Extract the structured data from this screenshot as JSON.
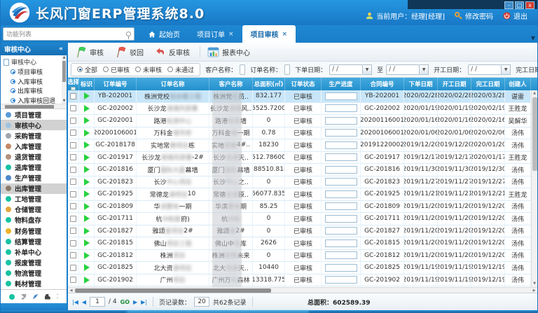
{
  "window": {
    "title": "长风门窗ERP管理系统8.0",
    "current_user": "当前用户：经理[经理]",
    "change_password": "修改密码",
    "logout": "退出",
    "minimize": "-",
    "maximize": "□",
    "close": "x"
  },
  "nav": {
    "function_list": "功能列表",
    "close_glyph": "×",
    "overflow_glyph": "▼",
    "tabs": [
      {
        "label": "起始页",
        "home": true
      },
      {
        "label": "项目订单",
        "closable": true
      },
      {
        "label": "项目审核",
        "closable": true,
        "active": true
      }
    ]
  },
  "sidebar": {
    "panel_title": "审核中心",
    "collapse_glyph": "«",
    "tree_root": "审核中心",
    "tree_items": [
      {
        "label": "项目审核"
      },
      {
        "label": "入库审核"
      },
      {
        "label": "出库审核"
      },
      {
        "label": "入库审核回退"
      }
    ],
    "up_glyph": "▲",
    "down_glyph": "▼",
    "menu": [
      {
        "label": "项目管理",
        "color": "#5b9bd5"
      },
      {
        "label": "审核中心",
        "color": "#9fc3e0",
        "selected": true
      },
      {
        "label": "采购管理",
        "color": "#a0a6ad"
      },
      {
        "label": "入库管理",
        "color": "#c48a66"
      },
      {
        "label": "退货管理",
        "color": "#b3917c"
      },
      {
        "label": "退库管理",
        "color": "#17c3a2"
      },
      {
        "label": "生产管理",
        "color": "#4f88c9"
      },
      {
        "label": "出库管理",
        "color": "#8a7a68",
        "selected": true
      },
      {
        "label": "工地管理",
        "color": "#17c3a2"
      },
      {
        "label": "仓储管理",
        "color": "#e2a63c"
      },
      {
        "label": "物料盘存",
        "color": "#17c3a2"
      },
      {
        "label": "财务管理",
        "color": "#f0b429"
      },
      {
        "label": "结算管理",
        "color": "#17c3a2"
      },
      {
        "label": "补单中心",
        "color": "#17c3a2"
      },
      {
        "label": "报废管理",
        "color": "#17c3a2"
      },
      {
        "label": "物流管理",
        "color": "#17c3a2"
      },
      {
        "label": "耗材管理",
        "color": "#17c3a2"
      }
    ]
  },
  "toolbar": {
    "audit": "审核",
    "reject": "驳回",
    "unaudit": "反审核",
    "report_center": "报表中心"
  },
  "filters": {
    "radios": [
      {
        "label": "全部",
        "checked": true
      },
      {
        "label": "已审核"
      },
      {
        "label": "未审核"
      },
      {
        "label": "未通过"
      }
    ],
    "customer_label": "客户名称：",
    "order_name_label": "订单名称：",
    "order_date_label": "下单日期：",
    "to_label": "至",
    "start_date_label": "开工日期：",
    "finish_date_label": "完工日期：",
    "date_value": "/  /",
    "dropdown_glyph": "▼"
  },
  "table": {
    "headers": {
      "select": "选择",
      "flag": "标识",
      "order_no": "订单编号",
      "order_name": "订单名称",
      "customer": "客户名称",
      "area": "总面积(㎡)",
      "status": "订单状态",
      "progress": "生产进度",
      "contract": "合同编号",
      "order_date": "下单日期",
      "start_date": "开工日期",
      "finish_date": "完工日期",
      "creator": "创建人"
    },
    "rows": [
      {
        "sel": true,
        "no": "YB-202001",
        "name_pre": "株洲党校",
        "name_blur": "综合楼工程",
        "name_suf": "",
        "cust_pre": "株洲党",
        "cust_blur": "校",
        "cust_suf": "员..",
        "area": "832.177",
        "status": "已审核",
        "progress": 0,
        "contract": "YB-202001",
        "d1": "2020/02/28",
        "d2": "2020/02/28",
        "d3": "2020/03/28",
        "creator": "谌雷"
      },
      {
        "no": "GC-202002",
        "name_pre": "长沙龙",
        "name_blur": "湖湘风原著",
        "name_suf": "",
        "cust_pre": "长沙龙",
        "cust_blur": "湖湘",
        "cust_suf": "风..",
        "area": "65525.7200..",
        "status": "已审核",
        "progress": 18,
        "contract": "GC-202002",
        "d1": "2020/01/19",
        "d2": "2020/01/19",
        "d3": "2020/02/19",
        "creator": "王胜龙"
      },
      {
        "no": "GC-202001",
        "name_pre": "路港",
        "name_blur": "检测中心",
        "name_suf": "",
        "cust_pre": "路港",
        "cust_blur": "检测",
        "cust_suf": "墙",
        "area": "0",
        "status": "已审核",
        "progress": 45,
        "contract": "20200116001",
        "d1": "2020/01/16",
        "d2": "2020/01/16",
        "d3": "2020/02/16",
        "creator": "吴解华"
      },
      {
        "no": "20200106001",
        "name_pre": "万科金",
        "name_blur": "域华府",
        "name_suf": "",
        "cust_pre": "万科金",
        "cust_blur": "域",
        "cust_suf": "一期",
        "area": "0.78",
        "status": "已审核",
        "progress": 70,
        "contract": "20200106001",
        "d1": "2020/01/06",
        "d2": "2020/01/06",
        "d3": "2020/02/06",
        "creator": "汤伟"
      },
      {
        "no": "GC-2018178",
        "name_pre": "实地常",
        "name_blur": "德项目",
        "name_suf": "栋",
        "cust_pre": "实地",
        "cust_blur": "常德",
        "cust_suf": "4#..",
        "area": "18230",
        "status": "已审核",
        "progress": 100,
        "contract": "20191220002",
        "d1": "2019/12/20",
        "d2": "2019/12/20",
        "d3": "2020/01/20",
        "creator": "汤伟"
      },
      {
        "no": "GC-201917",
        "name_pre": "长沙龙",
        "name_blur": "湖湘风原著",
        "name_suf": "-2#",
        "cust_pre": "长沙",
        "cust_blur": "龙湖",
        "cust_suf": "天..",
        "area": "8512.78600..",
        "status": "已审核",
        "progress": 70,
        "contract": "GC-201917",
        "d1": "2019/12/17",
        "d2": "2019/12/17",
        "d3": "2020/01/17",
        "creator": "王胜龙"
      },
      {
        "no": "GC-201816",
        "name_pre": "厦门",
        "name_blur": "国际大厦",
        "name_suf": "幕墙",
        "cust_pre": "厦门",
        "cust_blur": "国际",
        "cust_suf": "幕墙",
        "area": "188510.818",
        "status": "已审核",
        "progress": 0,
        "contract": "GC-201816",
        "d1": "2019/11/30",
        "d2": "2019/11/30",
        "d3": "2019/12/30",
        "creator": "汤伟"
      },
      {
        "no": "GC-201823",
        "name_pre": "长沙",
        "name_blur": "中心项目",
        "name_suf": "",
        "cust_pre": "长沙",
        "cust_blur": "中心",
        "cust_suf": "之..",
        "area": "0",
        "status": "已审核",
        "progress": 0,
        "contract": "GC-201823",
        "d1": "2019/11/27",
        "d2": "2019/11/27",
        "d3": "2019/12/27",
        "creator": "汤伟"
      },
      {
        "no": "GC-201925",
        "name_pre": "常德龙",
        "name_blur": "湖项目",
        "name_suf": "10",
        "cust_pre": "常德",
        "cust_blur": "龙湖",
        "cust_suf": "原..",
        "area": "266077.835..",
        "status": "已审核",
        "progress": 0,
        "contract": "GC-201925",
        "d1": "2019/11/21",
        "d2": "2019/11/21",
        "d3": "2019/12/21",
        "creator": "王胜龙"
      },
      {
        "no": "GC-201809",
        "name_pre": "华",
        "name_blur": "润置地",
        "name_suf": "一期",
        "cust_pre": "华滨",
        "cust_blur": "置地",
        "cust_suf": "期",
        "area": "85.25",
        "status": "已审核",
        "progress": 0,
        "contract": "GC-201809",
        "d1": "2019/11/20",
        "d2": "2019/11/20",
        "d3": "2019/12/20",
        "creator": "汤伟"
      },
      {
        "no": "GC-201711",
        "name_pre": "杭",
        "name_blur": "州和家",
        "name_suf": "府)",
        "cust_pre": "杭",
        "cust_blur": "州和",
        "cust_suf": "",
        "area": "0",
        "status": "已审核",
        "progress": 0,
        "contract": "GC-201711",
        "d1": "2019/11/20",
        "d2": "2019/11/20",
        "d3": "2019/12/20",
        "creator": "汤伟"
      },
      {
        "no": "GC-201827",
        "name_pre": "雅颂",
        "name_blur": "居项目",
        "name_suf": "2#",
        "cust_pre": "雅颂",
        "cust_blur": "居",
        "cust_suf": "2#",
        "area": "0",
        "status": "已审核",
        "progress": 0,
        "contract": "GC-201827",
        "d1": "2019/11/20",
        "d2": "2019/11/20",
        "d3": "2019/12/20",
        "creator": "汤伟"
      },
      {
        "no": "GC-201815",
        "name_pre": "佛山",
        "name_blur": "项目工程",
        "name_suf": "",
        "cust_pre": "佛山中",
        "cust_blur": "恒",
        "cust_suf": "库",
        "area": "2626",
        "status": "已审核",
        "progress": 0,
        "contract": "GC-201815",
        "d1": "2019/11/20",
        "d2": "2019/11/20",
        "d3": "2019/12/20",
        "creator": "汤伟"
      },
      {
        "no": "GC-201812",
        "name_pre": "株洲",
        "name_blur": "项目",
        "name_suf": "",
        "cust_pre": "株洲",
        "cust_blur": "智慧",
        "cust_suf": "未来",
        "area": "0",
        "status": "已审核",
        "progress": 0,
        "contract": "GC-201812",
        "d1": "2019/11/20",
        "d2": "2019/11/20",
        "d3": "2019/12/20",
        "creator": "汤伟"
      },
      {
        "no": "GC-201825",
        "name_pre": "北大资",
        "name_blur": "源项目",
        "name_suf": "",
        "cust_pre": "北大",
        "cust_blur": "资源",
        "cust_suf": "天..",
        "area": "10440",
        "status": "已审核",
        "progress": 0,
        "contract": "GC-201825",
        "d1": "2019/11/19",
        "d2": "2019/11/19",
        "d3": "2019/12/19",
        "creator": "汤伟"
      },
      {
        "no": "GC-201902",
        "name_pre": "广州",
        "name_blur": "项目",
        "name_suf": "",
        "cust_pre": "广州万",
        "cust_blur": "科",
        "cust_suf": "森林",
        "area": "13318.775",
        "status": "已审核",
        "progress": 0,
        "contract": "GC-201902",
        "d1": "2019/11/19",
        "d2": "2019/11/19",
        "d3": "2019/12/19",
        "creator": "汤伟"
      },
      {
        "no": "",
        "name_pre": "",
        "name_blur": "",
        "name_suf": "",
        "cust_pre": "",
        "cust_blur": "",
        "cust_suf": "",
        "area": "",
        "status": "",
        "progress": 0,
        "contract": "",
        "d1": "",
        "d2": "",
        "d3": "",
        "creator": ""
      }
    ]
  },
  "pagination": {
    "first": "|◀",
    "prev": "◀",
    "page": "1",
    "of": "/ 4",
    "go": "GO",
    "next": "▶",
    "last": "▶|",
    "page_size_label": "页记录数：",
    "page_size": "20",
    "total_records": "共62条记录",
    "total_area": "总面积：602589.39"
  }
}
